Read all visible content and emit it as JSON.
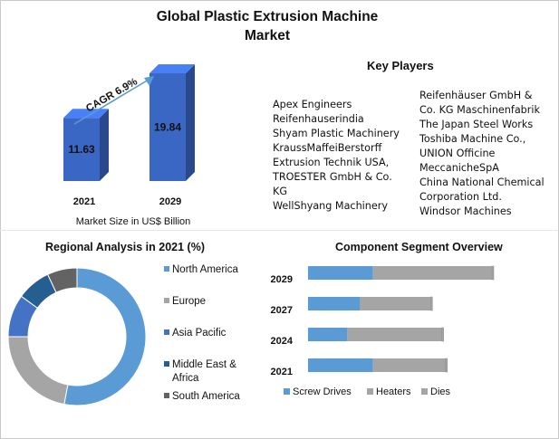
{
  "title": "Global Plastic Extrusion Machine Market",
  "market_size": {
    "caption": "Market Size in US$ Billion",
    "cagr_label": "CAGR 6.9%"
  },
  "key_players": {
    "title": "Key Players",
    "column_1": [
      "Apex Engineers",
      "Reifenhauserindia",
      "Shyam Plastic Machinery",
      "KraussMaffeiBerstorff",
      "Extrusion Technik USA,",
      "TROESTER GmbH & Co.",
      "KG",
      "WellShyang Machinery"
    ],
    "column_2": [
      "Reifenhäuser GmbH &",
      "Co. KG Maschinenfabrik",
      "The Japan Steel Works",
      "Toshiba Machine Co.,",
      "UNION Officine",
      "MeccanicheSpA",
      "China National Chemical",
      "Corporation Ltd.",
      "Windsor Machines"
    ]
  },
  "colors": {
    "bar_3d": "#3a66c4",
    "north_america": "#5b9bd5",
    "europe": "#a5a5a5",
    "asia_pacific": "#4472c4",
    "middle_east_africa": "#255e91",
    "south_america": "#636363",
    "screw_drives": "#5b9bd5",
    "heaters": "#a5a5a5",
    "dies": "#a5a5a5",
    "arrow": "#5b9bd5"
  },
  "chart_data": [
    {
      "type": "bar",
      "categories": [
        "2021",
        "2029"
      ],
      "values": [
        11.63,
        19.84
      ],
      "xlabel": "Market Size in US$ Billion",
      "annotation": "CAGR 6.9%",
      "style": "3d"
    },
    {
      "type": "pie",
      "title": "Regional Analysis in 2021 (%)",
      "donut": true,
      "labels": [
        "North America",
        "Europe",
        "Asia Pacific",
        "Middle East & Africa",
        "South America"
      ],
      "values": [
        53,
        22,
        10,
        8,
        7
      ]
    },
    {
      "type": "bar",
      "orientation": "horizontal",
      "stacked": true,
      "title": "Component Segment Overview",
      "categories": [
        "2029",
        "2027",
        "2024",
        "2021"
      ],
      "series": [
        {
          "name": "Screw Drives",
          "values": [
            35,
            28,
            21,
            35
          ]
        },
        {
          "name": "Heaters",
          "values": [
            64,
            38,
            51,
            39
          ]
        },
        {
          "name": "Dies",
          "values": [
            1,
            1,
            1,
            1
          ]
        }
      ],
      "legend": "bottom"
    }
  ]
}
